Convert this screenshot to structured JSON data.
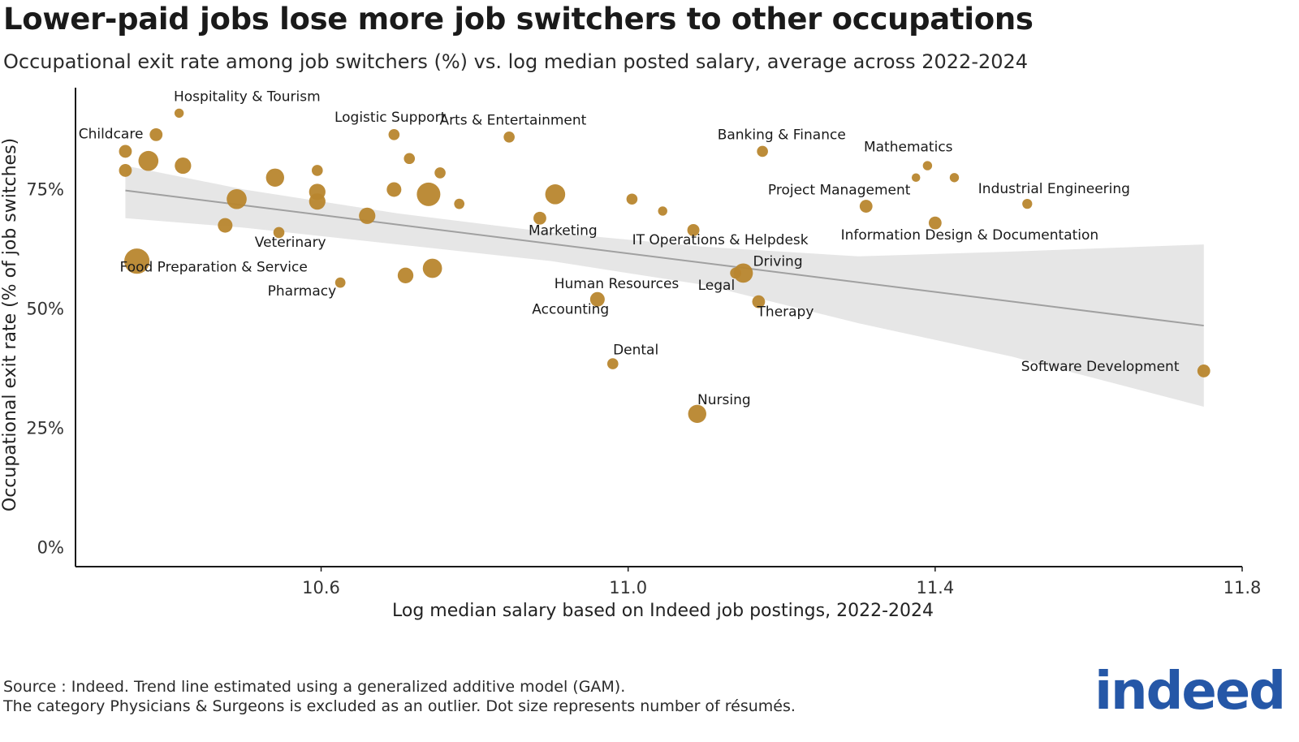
{
  "header": {
    "title": "Lower-paid jobs lose more job switchers to other occupations",
    "subtitle": "Occupational exit rate among job switchers (%) vs. log median posted salary, average across 2022-2024"
  },
  "footer": {
    "source": "Source : Indeed. Trend line estimated using a generalized additive model (GAM).",
    "note": "The category Physicians & Surgeons is excluded as an outlier. Dot size represents number of résumés."
  },
  "logo": {
    "text": "indeed"
  },
  "colors": {
    "point": "#b8862e",
    "trend": "#a0a0a0",
    "band": "#e3e3e3",
    "axis": "#1a1a1a"
  },
  "chart_data": {
    "type": "scatter",
    "title": "Lower-paid jobs lose more job switchers to other occupations",
    "xlabel": "Log median salary based on Indeed job postings, 2022-2024",
    "ylabel": "Occupational exit rate (% of job switches)",
    "xlim": [
      10.28,
      11.8
    ],
    "ylim": [
      -0.04,
      0.96
    ],
    "xticks": [
      10.6,
      11.0,
      11.4,
      11.8
    ],
    "xtick_labels": [
      "10.6",
      "11.0",
      "11.4",
      "11.8"
    ],
    "yticks": [
      0,
      0.25,
      0.5,
      0.75
    ],
    "ytick_labels": [
      "0%",
      "25%",
      "50%",
      "75%"
    ],
    "points": [
      {
        "x": 10.415,
        "y": 0.91,
        "size": 1,
        "label": "Hospitality & Tourism"
      },
      {
        "x": 10.385,
        "y": 0.865,
        "size": 2,
        "label": ""
      },
      {
        "x": 10.345,
        "y": 0.83,
        "size": 2,
        "label": "Childcare"
      },
      {
        "x": 10.375,
        "y": 0.81,
        "size": 4,
        "label": ""
      },
      {
        "x": 10.42,
        "y": 0.8,
        "size": 3,
        "label": ""
      },
      {
        "x": 10.345,
        "y": 0.79,
        "size": 2,
        "label": ""
      },
      {
        "x": 10.54,
        "y": 0.775,
        "size": 3.5,
        "label": ""
      },
      {
        "x": 10.595,
        "y": 0.79,
        "size": 1.5,
        "label": ""
      },
      {
        "x": 10.595,
        "y": 0.745,
        "size": 3,
        "label": ""
      },
      {
        "x": 10.595,
        "y": 0.725,
        "size": 3,
        "label": ""
      },
      {
        "x": 10.49,
        "y": 0.73,
        "size": 4,
        "label": ""
      },
      {
        "x": 10.475,
        "y": 0.675,
        "size": 2.5,
        "label": ""
      },
      {
        "x": 10.545,
        "y": 0.66,
        "size": 1.5,
        "label": "Veterinary"
      },
      {
        "x": 10.66,
        "y": 0.695,
        "size": 3,
        "label": ""
      },
      {
        "x": 10.695,
        "y": 0.75,
        "size": 2.5,
        "label": ""
      },
      {
        "x": 10.695,
        "y": 0.865,
        "size": 1.5,
        "label": "Logistic Support"
      },
      {
        "x": 10.715,
        "y": 0.815,
        "size": 1.5,
        "label": ""
      },
      {
        "x": 10.74,
        "y": 0.74,
        "size": 5,
        "label": ""
      },
      {
        "x": 10.755,
        "y": 0.785,
        "size": 1.5,
        "label": ""
      },
      {
        "x": 10.78,
        "y": 0.72,
        "size": 1.3,
        "label": ""
      },
      {
        "x": 10.845,
        "y": 0.86,
        "size": 1.5,
        "label": "Arts & Entertainment"
      },
      {
        "x": 10.885,
        "y": 0.69,
        "size": 2,
        "label": "Marketing"
      },
      {
        "x": 10.905,
        "y": 0.74,
        "size": 4,
        "label": ""
      },
      {
        "x": 10.36,
        "y": 0.6,
        "size": 5.5,
        "label": "Food Preparation & Service"
      },
      {
        "x": 10.625,
        "y": 0.555,
        "size": 1.3,
        "label": "Pharmacy"
      },
      {
        "x": 10.71,
        "y": 0.57,
        "size": 2.8,
        "label": ""
      },
      {
        "x": 10.745,
        "y": 0.585,
        "size": 3.8,
        "label": ""
      },
      {
        "x": 11.005,
        "y": 0.73,
        "size": 1.5,
        "label": ""
      },
      {
        "x": 11.045,
        "y": 0.705,
        "size": 1,
        "label": ""
      },
      {
        "x": 11.085,
        "y": 0.665,
        "size": 1.8,
        "label": "IT Operations & Helpdesk"
      },
      {
        "x": 11.175,
        "y": 0.83,
        "size": 1.5,
        "label": "Banking & Finance"
      },
      {
        "x": 11.15,
        "y": 0.575,
        "size": 3.8,
        "label": "Driving"
      },
      {
        "x": 11.14,
        "y": 0.575,
        "size": 1.5,
        "label": "Legal"
      },
      {
        "x": 11.17,
        "y": 0.515,
        "size": 2,
        "label": "Therapy"
      },
      {
        "x": 10.96,
        "y": 0.52,
        "size": 2.5,
        "label": "Human Resources"
      },
      {
        "x": 10.98,
        "y": 0.385,
        "size": 1.5,
        "label": "Dental"
      },
      {
        "x": 11.09,
        "y": 0.28,
        "size": 3.5,
        "label": "Nursing"
      },
      {
        "x": 11.31,
        "y": 0.715,
        "size": 2,
        "label": "Project Management"
      },
      {
        "x": 11.375,
        "y": 0.775,
        "size": 0.8,
        "label": ""
      },
      {
        "x": 11.39,
        "y": 0.8,
        "size": 1,
        "label": "Mathematics"
      },
      {
        "x": 11.425,
        "y": 0.775,
        "size": 1,
        "label": ""
      },
      {
        "x": 11.4,
        "y": 0.68,
        "size": 2,
        "label": "Information Design & Documentation"
      },
      {
        "x": 11.52,
        "y": 0.72,
        "size": 1.2,
        "label": "Industrial Engineering"
      },
      {
        "x": 11.75,
        "y": 0.37,
        "size": 2,
        "label": "Software Development"
      }
    ],
    "trend": {
      "x": [
        10.345,
        11.75
      ],
      "y": [
        0.748,
        0.465
      ],
      "band_x": [
        10.345,
        10.5,
        10.7,
        10.9,
        11.1,
        11.3,
        11.5,
        11.75
      ],
      "band_upper": [
        0.8,
        0.75,
        0.7,
        0.66,
        0.63,
        0.61,
        0.62,
        0.635
      ],
      "band_lower": [
        0.69,
        0.67,
        0.635,
        0.6,
        0.55,
        0.47,
        0.4,
        0.295
      ]
    },
    "annotations": [
      {
        "text": "Hospitality & Tourism",
        "x": 10.408,
        "y": 0.935,
        "anchor": "start"
      },
      {
        "text": "Childcare",
        "x": 10.345,
        "y": 0.857,
        "anchor": "middle-left"
      },
      {
        "text": "Logistic Support",
        "x": 10.69,
        "y": 0.892,
        "anchor": "middle"
      },
      {
        "text": "Arts & Entertainment",
        "x": 10.85,
        "y": 0.886,
        "anchor": "middle"
      },
      {
        "text": "Banking & Finance",
        "x": 11.2,
        "y": 0.855,
        "anchor": "middle"
      },
      {
        "text": "Mathematics",
        "x": 11.365,
        "y": 0.83,
        "anchor": "middle"
      },
      {
        "text": "Project Management",
        "x": 11.275,
        "y": 0.74,
        "anchor": "middle"
      },
      {
        "text": "Industrial Engineering",
        "x": 11.555,
        "y": 0.742,
        "anchor": "middle"
      },
      {
        "text": "Veterinary",
        "x": 10.56,
        "y": 0.63,
        "anchor": "middle"
      },
      {
        "text": "Marketing",
        "x": 10.915,
        "y": 0.655,
        "anchor": "middle"
      },
      {
        "text": "IT Operations & Helpdesk",
        "x": 11.12,
        "y": 0.635,
        "anchor": "middle"
      },
      {
        "text": "Information Design & Documentation",
        "x": 11.445,
        "y": 0.645,
        "anchor": "middle"
      },
      {
        "text": "Food Preparation & Service",
        "x": 10.46,
        "y": 0.578,
        "anchor": "middle"
      },
      {
        "text": "Driving",
        "x": 11.195,
        "y": 0.59,
        "anchor": "middle"
      },
      {
        "text": "Pharmacy",
        "x": 10.575,
        "y": 0.528,
        "anchor": "middle"
      },
      {
        "text": "Human Resources",
        "x": 10.985,
        "y": 0.543,
        "anchor": "middle"
      },
      {
        "text": "Legal",
        "x": 11.115,
        "y": 0.54,
        "anchor": "middle"
      },
      {
        "text": "Accounting",
        "x": 10.925,
        "y": 0.49,
        "anchor": "middle"
      },
      {
        "text": "Therapy",
        "x": 11.205,
        "y": 0.485,
        "anchor": "middle"
      },
      {
        "text": "Dental",
        "x": 11.01,
        "y": 0.405,
        "anchor": "middle"
      },
      {
        "text": "Nursing",
        "x": 11.125,
        "y": 0.3,
        "anchor": "middle"
      },
      {
        "text": "Software Development",
        "x": 11.615,
        "y": 0.37,
        "anchor": "middle"
      }
    ]
  }
}
